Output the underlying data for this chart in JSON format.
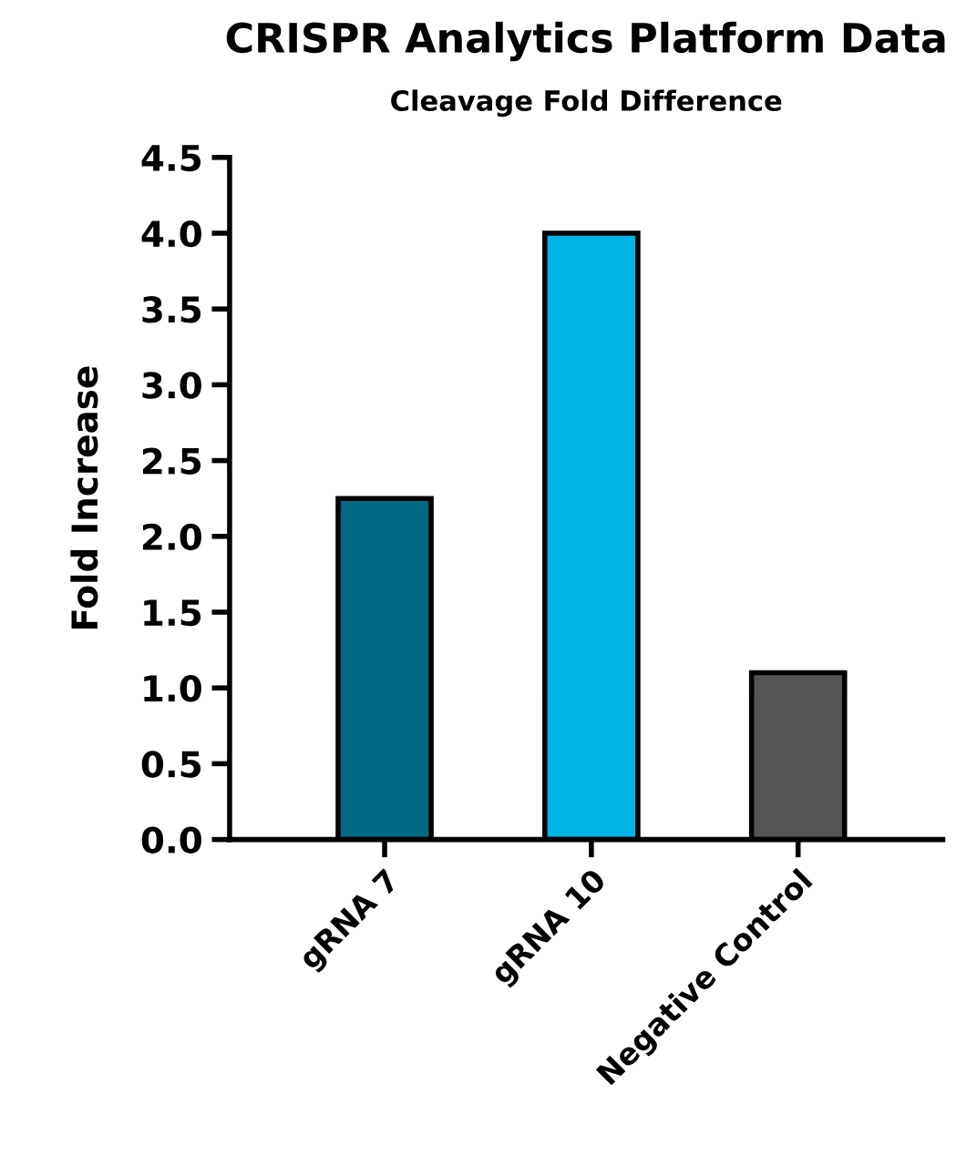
{
  "chart_data": {
    "type": "bar",
    "title": "CRISPR Analytics Platform Data",
    "subtitle": "Cleavage Fold Difference",
    "ylabel": "Fold Increase",
    "categories": [
      "gRNA 7",
      "gRNA 10",
      "Negative Control"
    ],
    "values": [
      2.25,
      4.0,
      1.1
    ],
    "colors": [
      "#006a84",
      "#00b4e6",
      "#555555"
    ],
    "ylim": [
      0,
      4.5
    ],
    "yticks": [
      {
        "value": 0,
        "label": "0.0"
      },
      {
        "value": 0.5,
        "label": "0.5"
      },
      {
        "value": 1,
        "label": "1.0"
      },
      {
        "value": 1.5,
        "label": "1.5"
      },
      {
        "value": 2,
        "label": "2.0"
      },
      {
        "value": 2.5,
        "label": "2.5"
      },
      {
        "value": 3,
        "label": "3.0"
      },
      {
        "value": 3.5,
        "label": "3.5"
      },
      {
        "value": 4,
        "label": "4.0"
      },
      {
        "value": 4.5,
        "label": "4.5"
      }
    ],
    "grid": false,
    "legend": false
  }
}
